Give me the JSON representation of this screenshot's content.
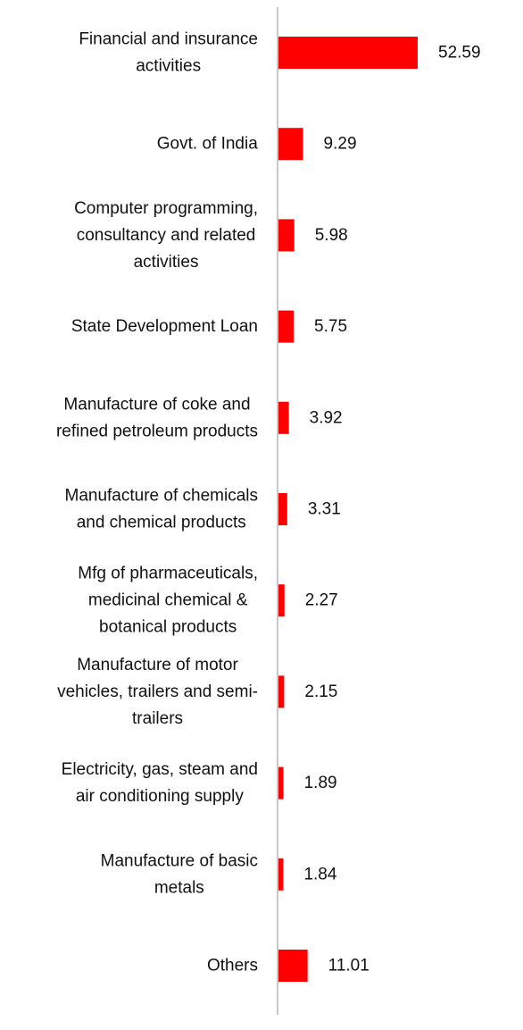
{
  "chart_data": {
    "type": "bar",
    "orientation": "horizontal",
    "categories": [
      [
        "Financial and insurance",
        "activities"
      ],
      [
        "Govt. of India"
      ],
      [
        "Computer programming,",
        "consultancy and related",
        "activities"
      ],
      [
        "State Development Loan"
      ],
      [
        "Manufacture of coke and",
        "refined petroleum products"
      ],
      [
        "Manufacture of chemicals",
        "and chemical products"
      ],
      [
        "Mfg of pharmaceuticals,",
        "medicinal chemical &",
        "botanical products"
      ],
      [
        "Manufacture of motor",
        "vehicles, trailers and semi-",
        "trailers"
      ],
      [
        "Electricity, gas, steam and",
        "air conditioning supply"
      ],
      [
        "Manufacture of basic",
        "metals"
      ],
      [
        "Others"
      ]
    ],
    "values": [
      52.59,
      9.29,
      5.98,
      5.75,
      3.92,
      3.31,
      2.27,
      2.15,
      1.89,
      1.84,
      11.01
    ],
    "value_labels": [
      "52.59",
      "9.29",
      "5.98",
      "5.75",
      "3.92",
      "3.31",
      "2.27",
      "2.15",
      "1.89",
      "1.84",
      "11.01"
    ],
    "xlim": [
      0,
      54
    ],
    "bar_color": "#ff0000",
    "axis_color": "#c8c8c8",
    "grid": false,
    "legend": "none"
  }
}
